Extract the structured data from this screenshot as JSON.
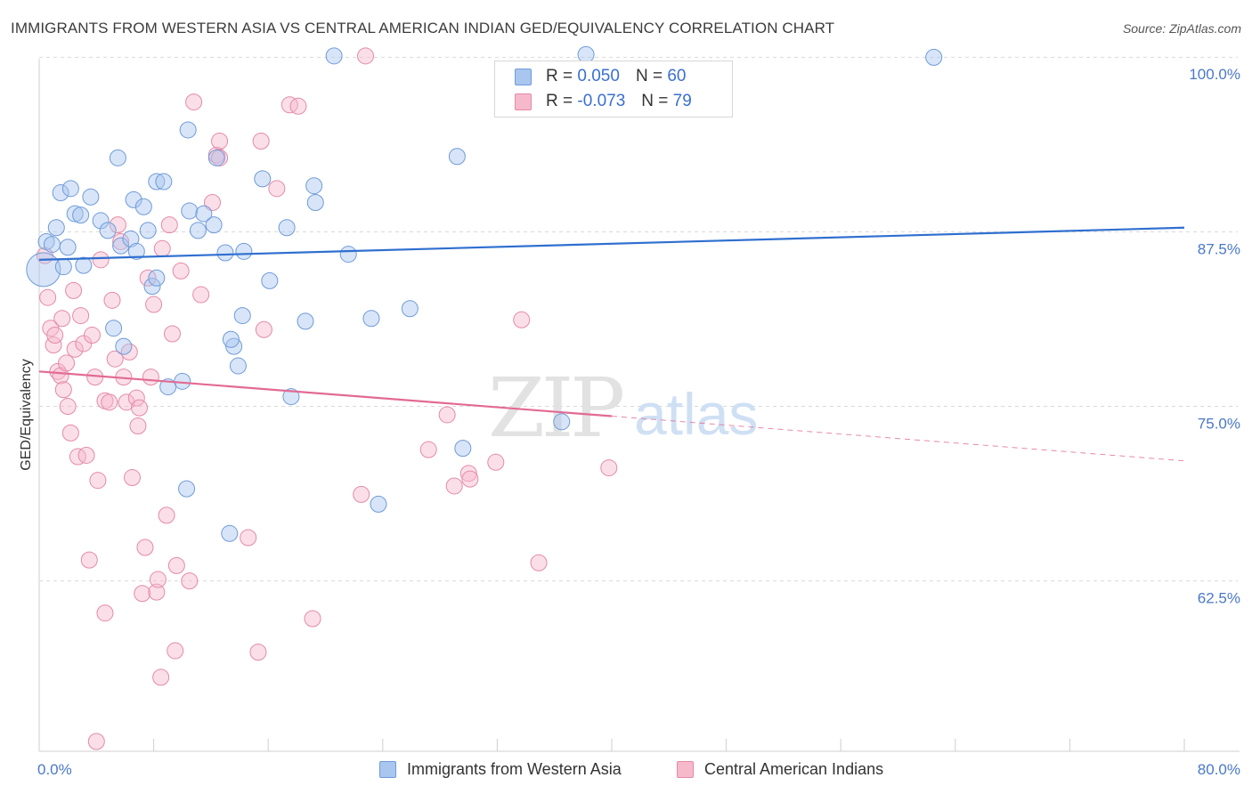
{
  "title": "IMMIGRANTS FROM WESTERN ASIA VS CENTRAL AMERICAN INDIAN GED/EQUIVALENCY CORRELATION CHART",
  "source": "Source: ZipAtlas.com",
  "watermark": {
    "zip": "ZIP",
    "atlas": "atlas"
  },
  "colors": {
    "blue_fill": "#a9c6ef",
    "blue_stroke": "#6f9bd8",
    "blue_line": "#2f6fcf",
    "pink_fill": "#f6b9cc",
    "pink_stroke": "#e48aa7",
    "pink_line": "#e26a93",
    "grid": "#d9d9d9",
    "tick_text": "#4a78c8"
  },
  "legend": {
    "rows": [
      {
        "r_label": "R =",
        "r_value": "0.050",
        "n_label": "N =",
        "n_value": "60",
        "series": "blue"
      },
      {
        "r_label": "R =",
        "r_value": "-0.073",
        "n_label": "N =",
        "n_value": "79",
        "series": "pink"
      }
    ]
  },
  "bottom_legend": [
    {
      "label": "Immigrants from Western Asia",
      "series": "blue"
    },
    {
      "label": "Central American Indians",
      "series": "pink"
    }
  ],
  "chart_data": {
    "type": "scatter",
    "ylabel": "GED/Equivalency",
    "xlim": [
      0,
      80
    ],
    "ylim": [
      51.5,
      102.5
    ],
    "x_tick_labels": [
      {
        "value": 0,
        "label": "0.0%"
      },
      {
        "value": 80,
        "label": "80.0%"
      }
    ],
    "y_tick_labels": [
      {
        "value": 100,
        "label": "100.0%"
      },
      {
        "value": 87.5,
        "label": "87.5%"
      },
      {
        "value": 75,
        "label": "75.0%"
      },
      {
        "value": 62.5,
        "label": "62.5%"
      }
    ],
    "y_grid": [
      101.2,
      88.7,
      76.2,
      63.7
    ],
    "x_minor_ticks": [
      0,
      8,
      16,
      24,
      32,
      40,
      48,
      56,
      64,
      72,
      80
    ],
    "series": [
      {
        "name": "Immigrants from Western Asia",
        "color": "blue",
        "r": 0.05,
        "n": 60,
        "trend": {
          "x0": 0,
          "y0": 86.7,
          "x1": 80,
          "y1": 89.0,
          "dash_from": null
        },
        "points": [
          [
            0.3,
            86.0
          ],
          [
            0.5,
            88.0
          ],
          [
            1.2,
            89.0
          ],
          [
            0.9,
            87.8
          ],
          [
            1.5,
            91.5
          ],
          [
            2.2,
            91.8
          ],
          [
            2.5,
            90.0
          ],
          [
            2.9,
            89.9
          ],
          [
            3.6,
            91.2
          ],
          [
            4.3,
            89.5
          ],
          [
            4.8,
            88.8
          ],
          [
            5.5,
            94.0
          ],
          [
            5.7,
            87.7
          ],
          [
            6.4,
            88.2
          ],
          [
            6.8,
            87.3
          ],
          [
            6.6,
            91.0
          ],
          [
            7.3,
            90.5
          ],
          [
            7.6,
            88.8
          ],
          [
            7.9,
            84.8
          ],
          [
            8.2,
            92.3
          ],
          [
            8.7,
            92.3
          ],
          [
            8.2,
            85.4
          ],
          [
            10.5,
            90.2
          ],
          [
            10.4,
            96.0
          ],
          [
            11.1,
            88.8
          ],
          [
            11.5,
            90.0
          ],
          [
            12.2,
            89.2
          ],
          [
            12.4,
            94.0
          ],
          [
            13.0,
            87.2
          ],
          [
            13.6,
            80.5
          ],
          [
            14.3,
            87.3
          ],
          [
            15.6,
            92.5
          ],
          [
            16.1,
            85.2
          ],
          [
            17.3,
            89.0
          ],
          [
            19.2,
            92.0
          ],
          [
            19.3,
            90.8
          ],
          [
            20.6,
            101.3
          ],
          [
            21.6,
            87.1
          ],
          [
            23.2,
            82.5
          ],
          [
            25.9,
            83.2
          ],
          [
            29.2,
            94.1
          ],
          [
            29.6,
            73.2
          ],
          [
            36.5,
            75.1
          ],
          [
            38.2,
            101.4
          ],
          [
            62.5,
            101.2
          ],
          [
            5.2,
            81.8
          ],
          [
            5.9,
            80.5
          ],
          [
            10.0,
            78.0
          ],
          [
            9.0,
            77.6
          ],
          [
            10.3,
            70.3
          ],
          [
            13.4,
            81.0
          ],
          [
            13.9,
            79.1
          ],
          [
            17.6,
            76.9
          ],
          [
            23.7,
            69.2
          ],
          [
            13.3,
            67.1
          ],
          [
            14.2,
            82.7
          ],
          [
            3.1,
            86.3
          ],
          [
            1.7,
            86.2
          ],
          [
            2.0,
            87.6
          ],
          [
            18.6,
            82.3
          ]
        ]
      },
      {
        "name": "Central American Indians",
        "color": "pink",
        "r": -0.073,
        "n": 79,
        "trend": {
          "x0": 0,
          "y0": 78.7,
          "x1": 80,
          "y1": 72.3,
          "dash_from": 40
        },
        "points": [
          [
            0.4,
            87.0
          ],
          [
            0.6,
            84.0
          ],
          [
            0.8,
            81.8
          ],
          [
            1.0,
            80.6
          ],
          [
            1.1,
            81.3
          ],
          [
            1.3,
            78.7
          ],
          [
            1.5,
            78.4
          ],
          [
            1.6,
            82.5
          ],
          [
            1.7,
            77.4
          ],
          [
            1.9,
            79.3
          ],
          [
            2.0,
            76.2
          ],
          [
            2.2,
            74.3
          ],
          [
            2.4,
            84.5
          ],
          [
            2.5,
            80.3
          ],
          [
            2.7,
            72.6
          ],
          [
            2.9,
            82.7
          ],
          [
            3.1,
            80.7
          ],
          [
            3.3,
            72.7
          ],
          [
            3.5,
            65.2
          ],
          [
            3.7,
            81.3
          ],
          [
            3.9,
            78.3
          ],
          [
            4.1,
            70.9
          ],
          [
            4.3,
            86.7
          ],
          [
            4.6,
            76.6
          ],
          [
            4.9,
            76.5
          ],
          [
            5.1,
            83.8
          ],
          [
            5.3,
            79.6
          ],
          [
            5.5,
            89.2
          ],
          [
            5.7,
            88.0
          ],
          [
            5.9,
            78.3
          ],
          [
            6.1,
            76.5
          ],
          [
            6.3,
            80.1
          ],
          [
            6.5,
            71.1
          ],
          [
            6.8,
            76.8
          ],
          [
            7.0,
            76.1
          ],
          [
            7.2,
            62.8
          ],
          [
            7.4,
            66.1
          ],
          [
            7.6,
            85.4
          ],
          [
            7.8,
            78.3
          ],
          [
            8.0,
            83.5
          ],
          [
            8.2,
            62.9
          ],
          [
            8.3,
            63.8
          ],
          [
            8.6,
            87.5
          ],
          [
            8.9,
            68.4
          ],
          [
            9.1,
            89.2
          ],
          [
            9.3,
            81.4
          ],
          [
            9.5,
            58.7
          ],
          [
            9.9,
            85.9
          ],
          [
            10.5,
            63.7
          ],
          [
            10.8,
            98.0
          ],
          [
            11.3,
            84.2
          ],
          [
            12.1,
            90.8
          ],
          [
            12.4,
            94.2
          ],
          [
            12.6,
            94.0
          ],
          [
            14.6,
            66.8
          ],
          [
            15.3,
            58.6
          ],
          [
            15.5,
            95.2
          ],
          [
            16.6,
            91.8
          ],
          [
            17.5,
            97.8
          ],
          [
            18.1,
            97.7
          ],
          [
            19.1,
            61.0
          ],
          [
            22.8,
            101.3
          ],
          [
            22.5,
            69.9
          ],
          [
            27.2,
            73.1
          ],
          [
            28.5,
            75.6
          ],
          [
            29.0,
            70.5
          ],
          [
            30.0,
            71.4
          ],
          [
            30.1,
            71.0
          ],
          [
            31.9,
            72.2
          ],
          [
            33.7,
            82.4
          ],
          [
            34.9,
            65.0
          ],
          [
            39.8,
            71.8
          ],
          [
            6.9,
            74.8
          ],
          [
            4.0,
            52.2
          ],
          [
            4.6,
            61.4
          ],
          [
            8.5,
            56.8
          ],
          [
            9.6,
            64.8
          ],
          [
            15.7,
            81.7
          ],
          [
            12.6,
            95.2
          ]
        ]
      }
    ]
  }
}
